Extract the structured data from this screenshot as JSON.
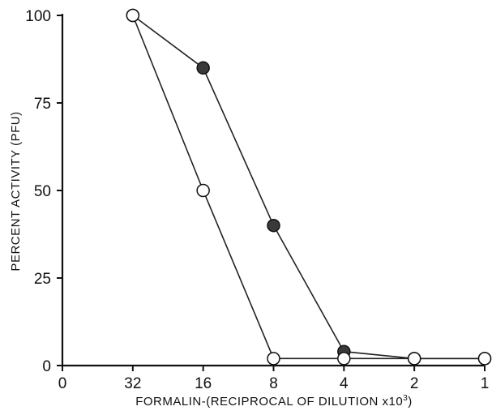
{
  "chart_data": {
    "type": "line",
    "xlabel": "FORMALIN-(RECIPROCAL OF DILUTION x10",
    "xlabel_superscript": "3",
    "xlabel_close": ")",
    "ylabel": "PERCENT ACTIVITY (PFU)",
    "x_ticks": [
      "0",
      "32",
      "16",
      "8",
      "4",
      "2",
      "1"
    ],
    "y_ticks": [
      0,
      25,
      50,
      75,
      100
    ],
    "ylim": [
      0,
      100
    ],
    "grid": false,
    "series": [
      {
        "marker": "filled-circle",
        "x": [
          "32",
          "16",
          "8",
          "4",
          "2",
          "1"
        ],
        "y": [
          100,
          85,
          40,
          4,
          2,
          2
        ]
      },
      {
        "marker": "open-circle",
        "x": [
          "32",
          "16",
          "8",
          "4",
          "2",
          "1"
        ],
        "y": [
          100,
          50,
          2,
          2,
          2,
          2
        ]
      }
    ],
    "colors": {
      "axis": "#111111",
      "filled_marker": "#3a3a3a",
      "open_marker": "#ffffff"
    }
  }
}
